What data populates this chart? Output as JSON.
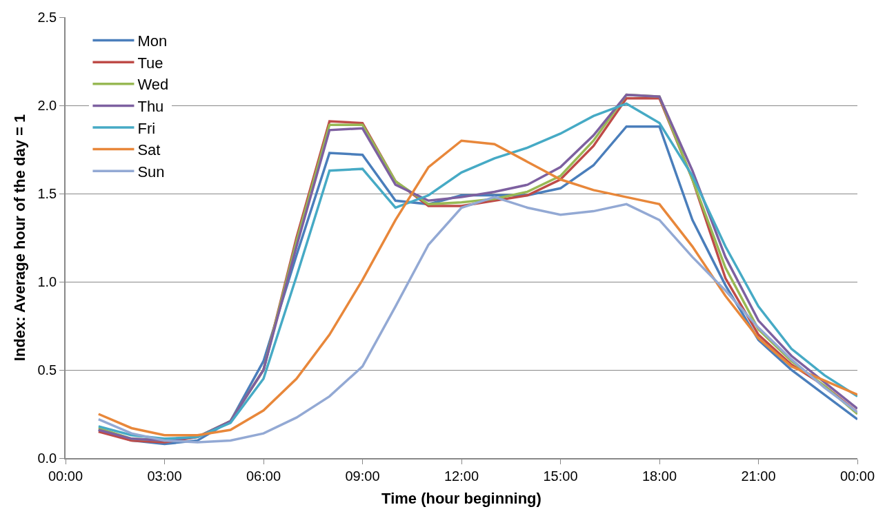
{
  "chart_data": {
    "type": "line",
    "xlabel": "Time (hour beginning)",
    "ylabel": "Index: Average hour of the day = 1",
    "x": [
      1,
      2,
      3,
      4,
      5,
      6,
      7,
      8,
      9,
      10,
      11,
      12,
      13,
      14,
      15,
      16,
      17,
      18,
      19,
      20,
      21,
      22,
      23,
      24
    ],
    "xlim": [
      0,
      24
    ],
    "xticks": [
      {
        "value": 0,
        "label": "00:00"
      },
      {
        "value": 3,
        "label": "03:00"
      },
      {
        "value": 6,
        "label": "06:00"
      },
      {
        "value": 9,
        "label": "09:00"
      },
      {
        "value": 12,
        "label": "12:00"
      },
      {
        "value": 15,
        "label": "15:00"
      },
      {
        "value": 18,
        "label": "18:00"
      },
      {
        "value": 21,
        "label": "21:00"
      },
      {
        "value": 24,
        "label": "00:00"
      }
    ],
    "ylim": [
      0,
      2.5
    ],
    "yticks": [
      {
        "value": 0,
        "label": "0.0"
      },
      {
        "value": 0.5,
        "label": "0.5"
      },
      {
        "value": 1,
        "label": "1.0"
      },
      {
        "value": 1.5,
        "label": "1.5"
      },
      {
        "value": 2,
        "label": "2.0"
      },
      {
        "value": 2.5,
        "label": "2.5"
      }
    ],
    "grid": "y",
    "legend": "top left",
    "marker": "none",
    "line_style": "solid",
    "series": [
      {
        "name": "Mon",
        "color": "#4a7ebb",
        "values": [
          0.16,
          0.1,
          0.08,
          0.1,
          0.21,
          0.55,
          1.15,
          1.73,
          1.72,
          1.46,
          1.44,
          1.49,
          1.49,
          1.49,
          1.53,
          1.66,
          1.88,
          1.88,
          1.35,
          0.98,
          0.67,
          0.5,
          0.36,
          0.22
        ]
      },
      {
        "name": "Tue",
        "color": "#be4b48",
        "values": [
          0.15,
          0.1,
          0.09,
          0.12,
          0.21,
          0.5,
          1.25,
          1.91,
          1.9,
          1.57,
          1.43,
          1.43,
          1.46,
          1.49,
          1.58,
          1.77,
          2.04,
          2.04,
          1.58,
          1.02,
          0.7,
          0.53,
          0.41,
          0.26
        ]
      },
      {
        "name": "Wed",
        "color": "#98b954",
        "values": [
          0.17,
          0.11,
          0.1,
          0.12,
          0.21,
          0.5,
          1.23,
          1.89,
          1.89,
          1.57,
          1.44,
          1.45,
          1.47,
          1.51,
          1.6,
          1.8,
          2.06,
          2.05,
          1.58,
          1.08,
          0.73,
          0.55,
          0.41,
          0.25
        ]
      },
      {
        "name": "Thu",
        "color": "#7d60a0",
        "values": [
          0.16,
          0.11,
          0.1,
          0.12,
          0.21,
          0.5,
          1.2,
          1.86,
          1.87,
          1.55,
          1.46,
          1.48,
          1.51,
          1.55,
          1.65,
          1.83,
          2.06,
          2.05,
          1.63,
          1.14,
          0.78,
          0.58,
          0.43,
          0.28
        ]
      },
      {
        "name": "Fri",
        "color": "#46aac5",
        "values": [
          0.18,
          0.13,
          0.11,
          0.12,
          0.2,
          0.45,
          1.03,
          1.63,
          1.64,
          1.42,
          1.49,
          1.62,
          1.7,
          1.76,
          1.84,
          1.94,
          2.01,
          1.9,
          1.6,
          1.2,
          0.86,
          0.62,
          0.47,
          0.35
        ]
      },
      {
        "name": "Sat",
        "color": "#e8873a",
        "values": [
          0.25,
          0.17,
          0.13,
          0.13,
          0.16,
          0.27,
          0.45,
          0.7,
          1.01,
          1.35,
          1.65,
          1.8,
          1.78,
          1.68,
          1.58,
          1.52,
          1.48,
          1.44,
          1.2,
          0.92,
          0.68,
          0.52,
          0.44,
          0.36
        ]
      },
      {
        "name": "Sun",
        "color": "#93a9d4",
        "values": [
          0.22,
          0.14,
          0.1,
          0.09,
          0.1,
          0.14,
          0.23,
          0.35,
          0.52,
          0.86,
          1.21,
          1.42,
          1.48,
          1.42,
          1.38,
          1.4,
          1.44,
          1.35,
          1.14,
          0.95,
          0.74,
          0.56,
          0.4,
          0.26
        ]
      }
    ]
  }
}
